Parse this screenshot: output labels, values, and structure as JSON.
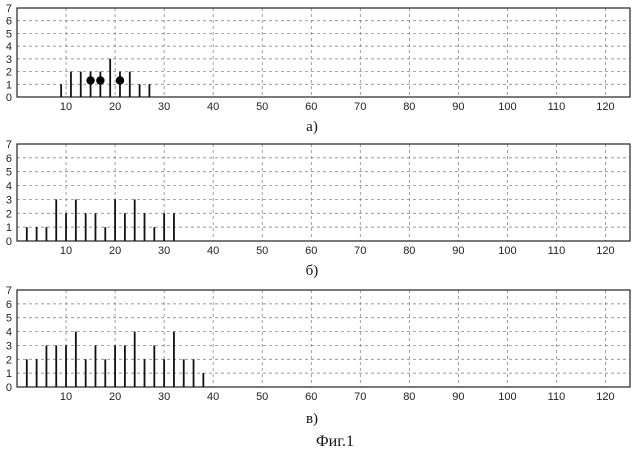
{
  "figure_caption": "Фиг.1",
  "chart_data": [
    {
      "type": "bar",
      "panel_label": "а)",
      "xlim": [
        0,
        125
      ],
      "ylim": [
        0,
        7
      ],
      "x_ticks": [
        10,
        20,
        30,
        40,
        50,
        60,
        70,
        80,
        90,
        100,
        110,
        120
      ],
      "y_ticks": [
        0,
        1,
        2,
        3,
        4,
        5,
        6,
        7
      ],
      "grid": true,
      "x": [
        9,
        11,
        13,
        15,
        17,
        19,
        21,
        23,
        25,
        27
      ],
      "values": [
        1,
        2,
        2,
        2,
        2,
        3,
        2,
        2,
        1,
        1
      ],
      "markers": [
        {
          "x": 15,
          "y": 1.3
        },
        {
          "x": 17,
          "y": 1.3
        },
        {
          "x": 21,
          "y": 1.3
        }
      ]
    },
    {
      "type": "bar",
      "panel_label": "б)",
      "xlim": [
        0,
        125
      ],
      "ylim": [
        0,
        7
      ],
      "x_ticks": [
        10,
        20,
        30,
        40,
        50,
        60,
        70,
        80,
        90,
        100,
        110,
        120
      ],
      "y_ticks": [
        0,
        1,
        2,
        3,
        4,
        5,
        6,
        7
      ],
      "grid": true,
      "x": [
        2,
        4,
        6,
        8,
        10,
        12,
        14,
        16,
        18,
        20,
        22,
        24,
        26,
        28,
        30,
        32
      ],
      "values": [
        1,
        1,
        1,
        3,
        2,
        3,
        2,
        2,
        1,
        3,
        2,
        3,
        2,
        1,
        2,
        2
      ]
    },
    {
      "type": "bar",
      "panel_label": "в)",
      "xlim": [
        0,
        125
      ],
      "ylim": [
        0,
        7
      ],
      "x_ticks": [
        10,
        20,
        30,
        40,
        50,
        60,
        70,
        80,
        90,
        100,
        110,
        120
      ],
      "y_ticks": [
        0,
        1,
        2,
        3,
        4,
        5,
        6,
        7
      ],
      "grid": true,
      "x": [
        2,
        4,
        6,
        8,
        10,
        12,
        14,
        16,
        18,
        20,
        22,
        24,
        26,
        28,
        30,
        32,
        34,
        36,
        38
      ],
      "values": [
        2,
        2,
        3,
        3,
        3,
        4,
        2,
        3,
        2,
        3,
        3,
        4,
        2,
        3,
        2,
        4,
        2,
        2,
        1
      ]
    }
  ]
}
